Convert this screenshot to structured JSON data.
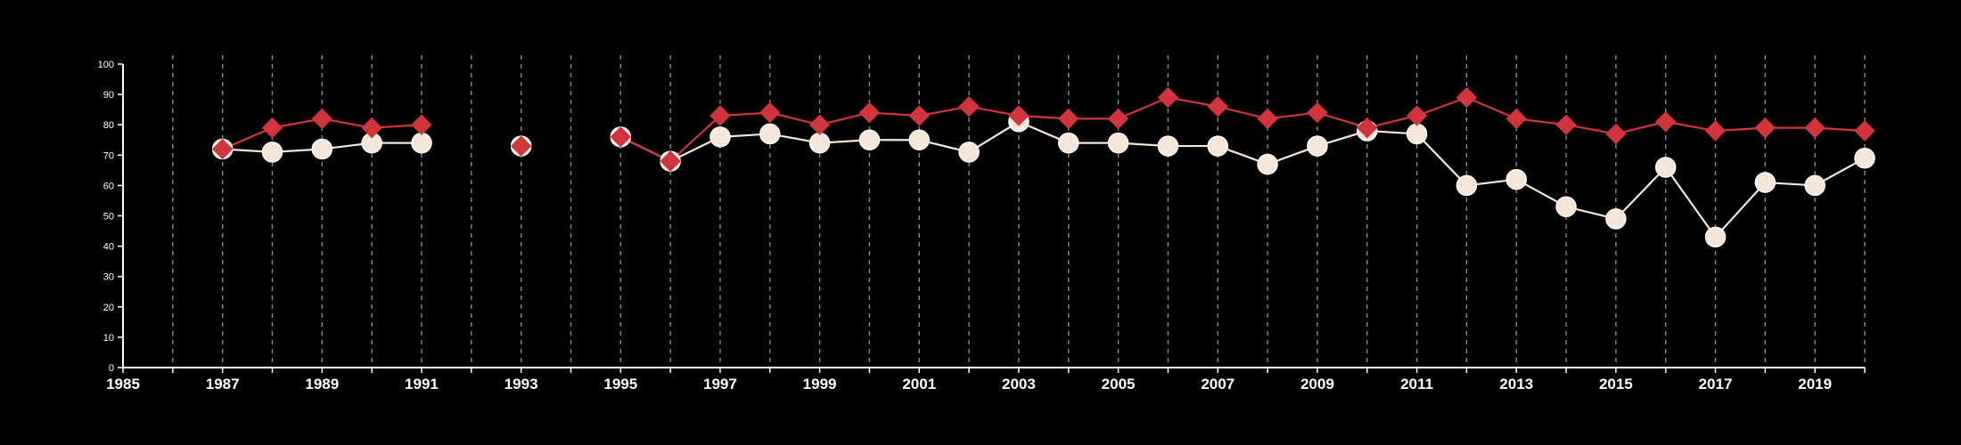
{
  "chart_data": {
    "type": "line",
    "background": "#000000",
    "x_ticks": [
      1985,
      1987,
      1989,
      1991,
      1993,
      1995,
      1997,
      1999,
      2001,
      2003,
      2005,
      2007,
      2009,
      2011,
      2013,
      2015,
      2017,
      2019
    ],
    "x_tick_labels": [
      "1985",
      "1987",
      "1989",
      "1991",
      "1993",
      "1995",
      "1997",
      "1999",
      "2001",
      "2003",
      "2005",
      "2007",
      "2009",
      "2011",
      "2013",
      "2015",
      "2017",
      "2019"
    ],
    "xlim": [
      1985,
      2020
    ],
    "ylim": [
      0,
      100
    ],
    "y_ticks": [
      0,
      10,
      20,
      30,
      40,
      50,
      60,
      70,
      80,
      90,
      100
    ],
    "y_tick_labels": [
      "0",
      "10",
      "20",
      "30",
      "40",
      "50",
      "60",
      "70",
      "80",
      "90",
      "100"
    ],
    "vertical_gridlines": "dashed, every year",
    "series": [
      {
        "color": "#f5e6d8",
        "marker": "circle",
        "points": [
          {
            "x": 1987,
            "y": 72
          },
          {
            "x": 1988,
            "y": 71
          },
          {
            "x": 1989,
            "y": 72
          },
          {
            "x": 1990,
            "y": 74
          },
          {
            "x": 1991,
            "y": 74
          },
          {
            "x": 1993,
            "y": 73
          },
          {
            "x": 1995,
            "y": 76
          },
          {
            "x": 1996,
            "y": 68
          },
          {
            "x": 1997,
            "y": 76
          },
          {
            "x": 1998,
            "y": 77
          },
          {
            "x": 1999,
            "y": 74
          },
          {
            "x": 2000,
            "y": 75
          },
          {
            "x": 2001,
            "y": 75
          },
          {
            "x": 2002,
            "y": 71
          },
          {
            "x": 2003,
            "y": 81
          },
          {
            "x": 2004,
            "y": 74
          },
          {
            "x": 2005,
            "y": 74
          },
          {
            "x": 2006,
            "y": 73
          },
          {
            "x": 2007,
            "y": 73
          },
          {
            "x": 2008,
            "y": 67
          },
          {
            "x": 2009,
            "y": 73
          },
          {
            "x": 2010,
            "y": 78
          },
          {
            "x": 2011,
            "y": 77
          },
          {
            "x": 2012,
            "y": 60
          },
          {
            "x": 2013,
            "y": 62
          },
          {
            "x": 2014,
            "y": 53
          },
          {
            "x": 2015,
            "y": 49
          },
          {
            "x": 2016,
            "y": 66
          },
          {
            "x": 2017,
            "y": 43
          },
          {
            "x": 2018,
            "y": 61
          },
          {
            "x": 2019,
            "y": 60
          },
          {
            "x": 2020,
            "y": 69
          }
        ]
      },
      {
        "color": "#d1343a",
        "marker": "diamond",
        "points": [
          {
            "x": 1987,
            "y": 72
          },
          {
            "x": 1988,
            "y": 79
          },
          {
            "x": 1989,
            "y": 82
          },
          {
            "x": 1990,
            "y": 79
          },
          {
            "x": 1991,
            "y": 80
          },
          {
            "x": 1993,
            "y": 73
          },
          {
            "x": 1995,
            "y": 76
          },
          {
            "x": 1996,
            "y": 68
          },
          {
            "x": 1997,
            "y": 83
          },
          {
            "x": 1998,
            "y": 84
          },
          {
            "x": 1999,
            "y": 80
          },
          {
            "x": 2000,
            "y": 84
          },
          {
            "x": 2001,
            "y": 83
          },
          {
            "x": 2002,
            "y": 86
          },
          {
            "x": 2003,
            "y": 83
          },
          {
            "x": 2004,
            "y": 82
          },
          {
            "x": 2005,
            "y": 82
          },
          {
            "x": 2006,
            "y": 89
          },
          {
            "x": 2007,
            "y": 86
          },
          {
            "x": 2008,
            "y": 82
          },
          {
            "x": 2009,
            "y": 84
          },
          {
            "x": 2010,
            "y": 79
          },
          {
            "x": 2011,
            "y": 83
          },
          {
            "x": 2012,
            "y": 89
          },
          {
            "x": 2013,
            "y": 82
          },
          {
            "x": 2014,
            "y": 80
          },
          {
            "x": 2015,
            "y": 77
          },
          {
            "x": 2016,
            "y": 81
          },
          {
            "x": 2017,
            "y": 78
          },
          {
            "x": 2018,
            "y": 79
          },
          {
            "x": 2019,
            "y": 79
          },
          {
            "x": 2020,
            "y": 78
          }
        ]
      }
    ]
  }
}
